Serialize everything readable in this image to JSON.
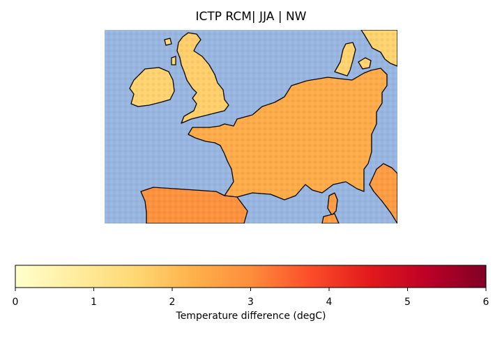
{
  "title": "ICTP RCM| JJA | NW",
  "colorbar": {
    "label": "Temperature difference (degC)",
    "min": 0,
    "max": 6,
    "ticks": [
      "0",
      "1",
      "2",
      "3",
      "4",
      "5",
      "6"
    ],
    "colormap": "YlOrRd",
    "stops": [
      "#ffffcc",
      "#ffeda0",
      "#fed976",
      "#feb24c",
      "#fd8d3c",
      "#fc4e2a",
      "#e31a1c",
      "#bd0026",
      "#800026"
    ]
  },
  "map": {
    "region": "north-west-europe",
    "ocean_color": "#97b6e1",
    "coastline_color": "#000000",
    "values": {
      "ireland": 1.6,
      "great_britain": 1.7,
      "scotland": 1.5,
      "denmark": 1.6,
      "france": 2.4,
      "iberia": 2.9,
      "benelux_germany": 2.2,
      "corsica": 2.7
    }
  }
}
